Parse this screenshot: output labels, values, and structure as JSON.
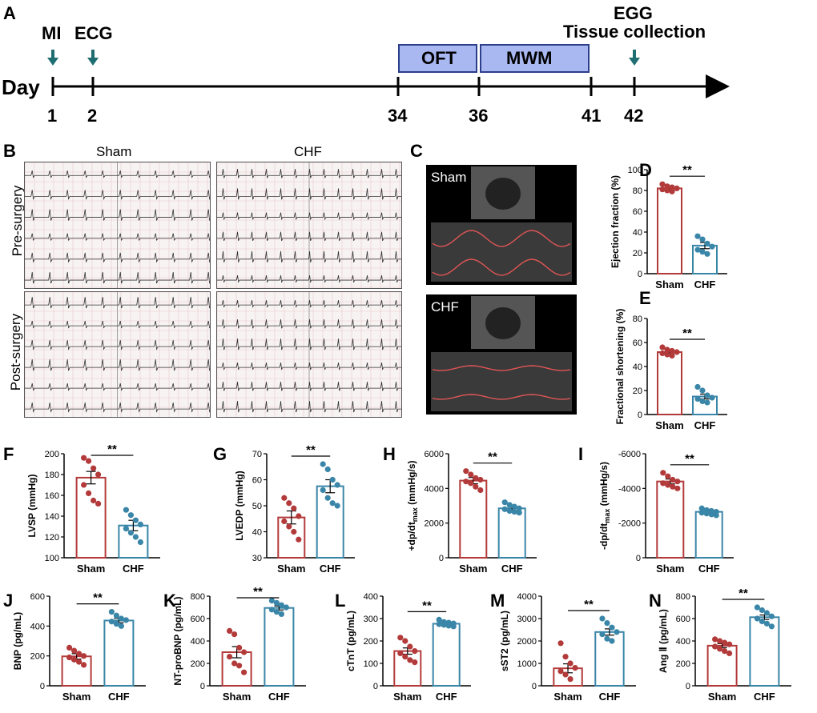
{
  "timeline": {
    "panel": "A",
    "day_label": "Day",
    "events": [
      {
        "label": "MI",
        "day": "1"
      },
      {
        "label": "ECG",
        "day": "2"
      },
      {
        "label": "EGG",
        "day": "42"
      },
      {
        "label": "Tissue collection",
        "day": "42"
      }
    ],
    "boxes": [
      {
        "label": "OFT",
        "start": "34",
        "end": "36"
      },
      {
        "label": "MWM",
        "start": "36",
        "end": "41"
      }
    ],
    "ticks": [
      "1",
      "2",
      "34",
      "36",
      "41",
      "42"
    ]
  },
  "ecg": {
    "panel": "B",
    "columns": [
      "Sham",
      "CHF"
    ],
    "rows": [
      "Pre-surgery",
      "Post-surgery"
    ]
  },
  "echo": {
    "panel": "C",
    "groups": [
      "Sham",
      "CHF"
    ]
  },
  "colors": {
    "sham": "#b33a3a",
    "chf": "#3a86a8",
    "timeline_box": "#aab8f2",
    "arrow": "#1f6e73"
  },
  "chart_data": [
    {
      "panel": "D",
      "type": "bar",
      "categories": [
        "Sham",
        "CHF"
      ],
      "values": [
        82,
        27
      ],
      "sem": [
        2,
        3
      ],
      "points": [
        [
          86,
          84,
          83,
          82,
          81,
          80,
          79
        ],
        [
          36,
          33,
          29,
          26,
          23,
          21,
          19
        ]
      ],
      "ylabel": "Ejection fraction (%)",
      "ylim": [
        0,
        100
      ],
      "yticks": [
        "0",
        "20",
        "40",
        "60",
        "80",
        "100"
      ],
      "sig": "**"
    },
    {
      "panel": "E",
      "type": "bar",
      "categories": [
        "Sham",
        "CHF"
      ],
      "values": [
        52,
        15
      ],
      "sem": [
        1.5,
        2
      ],
      "points": [
        [
          56,
          54,
          53,
          52,
          51,
          50,
          49
        ],
        [
          23,
          20,
          16,
          14,
          13,
          11,
          10
        ]
      ],
      "ylabel": "Fractional shortening (%)",
      "ylim": [
        0,
        80
      ],
      "yticks": [
        "0",
        "20",
        "40",
        "60",
        "80"
      ],
      "sig": "**"
    },
    {
      "panel": "F",
      "type": "bar",
      "categories": [
        "Sham",
        "CHF"
      ],
      "values": [
        177,
        131
      ],
      "sem": [
        6,
        5
      ],
      "points": [
        [
          196,
          193,
          186,
          180,
          170,
          162,
          155,
          152
        ],
        [
          146,
          141,
          136,
          132,
          128,
          124,
          120,
          115
        ]
      ],
      "ylabel": "LVSP (mmHg)",
      "ylim": [
        100,
        200
      ],
      "yticks": [
        "100",
        "120",
        "140",
        "160",
        "180",
        "200"
      ],
      "sig": "**"
    },
    {
      "panel": "G",
      "type": "bar",
      "categories": [
        "Sham",
        "CHF"
      ],
      "values": [
        45.5,
        57.5
      ],
      "sem": [
        2.5,
        2.5
      ],
      "points": [
        [
          53,
          51,
          49,
          46,
          44,
          42,
          40,
          37
        ],
        [
          66,
          64,
          60,
          58,
          56,
          53,
          51,
          50
        ]
      ],
      "ylabel": "LVEDP (mmHg)",
      "ylim": [
        30,
        70
      ],
      "yticks": [
        "30",
        "40",
        "50",
        "60",
        "70"
      ],
      "sig": "**"
    },
    {
      "panel": "H",
      "type": "bar",
      "categories": [
        "Sham",
        "CHF"
      ],
      "values": [
        4450,
        2850
      ],
      "sem": [
        180,
        120
      ],
      "points": [
        [
          5000,
          4800,
          4600,
          4500,
          4400,
          4300,
          4100,
          3900
        ],
        [
          3200,
          3050,
          2950,
          2850,
          2800,
          2700,
          2650,
          2600
        ]
      ],
      "ylabel": "+dp/dtmax (mmHg/s)",
      "ylim": [
        0,
        6000
      ],
      "yticks": [
        "0",
        "2000",
        "4000",
        "6000"
      ],
      "sig": "**"
    },
    {
      "panel": "I",
      "type": "bar",
      "categories": [
        "Sham",
        "CHF"
      ],
      "values": [
        4400,
        2650
      ],
      "sem": [
        140,
        80
      ],
      "points": [
        [
          4900,
          4700,
          4500,
          4400,
          4300,
          4200,
          4100,
          4000
        ],
        [
          2850,
          2750,
          2700,
          2650,
          2600,
          2550,
          2500,
          2450
        ]
      ],
      "ylabel": "-dp/dtmax (mmHg/s)",
      "ylim": [
        0,
        6000
      ],
      "yticks": [
        "0",
        "-2000",
        "-4000",
        "-6000"
      ],
      "sig": "**"
    },
    {
      "panel": "J",
      "type": "bar",
      "categories": [
        "Sham",
        "CHF"
      ],
      "values": [
        197,
        437
      ],
      "sem": [
        18,
        15
      ],
      "points": [
        [
          255,
          235,
          215,
          200,
          190,
          175,
          160,
          140
        ],
        [
          495,
          470,
          450,
          440,
          430,
          415,
          400
        ]
      ],
      "ylabel": "BNP (pg/mL)",
      "ylim": [
        0,
        600
      ],
      "yticks": [
        "0",
        "200",
        "400",
        "600"
      ],
      "sig": "**"
    },
    {
      "panel": "K",
      "type": "bar",
      "categories": [
        "Sham",
        "CHF"
      ],
      "values": [
        300,
        695
      ],
      "sem": [
        50,
        18
      ],
      "points": [
        [
          490,
          460,
          340,
          300,
          260,
          200,
          180,
          120
        ],
        [
          760,
          740,
          720,
          700,
          680,
          660,
          640
        ]
      ],
      "ylabel": "NT-proBNP (pg/mL)",
      "ylim": [
        0,
        800
      ],
      "yticks": [
        "0",
        "200",
        "400",
        "600",
        "800"
      ],
      "sig": "**"
    },
    {
      "panel": "L",
      "type": "bar",
      "categories": [
        "Sham",
        "CHF"
      ],
      "values": [
        155,
        277
      ],
      "sem": [
        14,
        5
      ],
      "points": [
        [
          215,
          200,
          175,
          155,
          145,
          130,
          115,
          105
        ],
        [
          295,
          285,
          282,
          278,
          275,
          272,
          268,
          265
        ]
      ],
      "ylabel": "cTnT (pg/mL)",
      "ylim": [
        0,
        400
      ],
      "yticks": [
        "0",
        "100",
        "200",
        "300",
        "400"
      ],
      "sig": "**"
    },
    {
      "panel": "M",
      "type": "bar",
      "categories": [
        "Sham",
        "CHF"
      ],
      "values": [
        780,
        2400
      ],
      "sem": [
        200,
        140
      ],
      "points": [
        [
          1900,
          1300,
          1000,
          800,
          650,
          500,
          300
        ],
        [
          3000,
          2800,
          2600,
          2400,
          2300,
          2100,
          2000
        ]
      ],
      "ylabel": "sST2 (pg/mL)",
      "ylim": [
        0,
        4000
      ],
      "yticks": [
        "0",
        "1000",
        "2000",
        "3000",
        "4000"
      ],
      "sig": "**"
    },
    {
      "panel": "N",
      "type": "bar",
      "categories": [
        "Sham",
        "CHF"
      ],
      "values": [
        358,
        612
      ],
      "sem": [
        18,
        20
      ],
      "points": [
        [
          415,
          400,
          385,
          370,
          350,
          330,
          310,
          290
        ],
        [
          700,
          675,
          650,
          620,
          600,
          575,
          555,
          530
        ]
      ],
      "ylabel": "Ang Ⅱ (pg/mL)",
      "ylim": [
        0,
        800
      ],
      "yticks": [
        "0",
        "200",
        "400",
        "600",
        "800"
      ],
      "sig": "**"
    }
  ]
}
